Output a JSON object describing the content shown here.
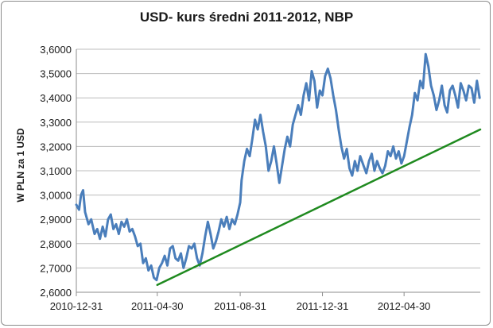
{
  "chart_data": {
    "type": "line",
    "title": "USD- kurs średni 2011-2012, NBP",
    "ylabel": "W PLN za 1 USD",
    "xlabel": "",
    "ylim": [
      2.6,
      3.6
    ],
    "yticks": [
      "3,6000",
      "3,5000",
      "3,4000",
      "3,3000",
      "3,2000",
      "3,1000",
      "3,0000",
      "2,9000",
      "2,8000",
      "2,7000",
      "2,6000"
    ],
    "xticks": [
      "2010-12-31",
      "2011-04-30",
      "2011-08-31",
      "2011-12-31",
      "2012-04-30"
    ],
    "xlim": [
      "2010-12-31",
      "2012-08-21"
    ],
    "grid": true,
    "legend": "none",
    "series": [
      {
        "color": "#4a7ebb",
        "points": [
          [
            "2010-12-31",
            2.96
          ],
          [
            "2011-01-04",
            2.94
          ],
          [
            "2011-01-07",
            3.0
          ],
          [
            "2011-01-10",
            3.02
          ],
          [
            "2011-01-13",
            2.93
          ],
          [
            "2011-01-18",
            2.88
          ],
          [
            "2011-01-22",
            2.9
          ],
          [
            "2011-01-27",
            2.84
          ],
          [
            "2011-01-31",
            2.86
          ],
          [
            "2011-02-04",
            2.82
          ],
          [
            "2011-02-08",
            2.87
          ],
          [
            "2011-02-12",
            2.83
          ],
          [
            "2011-02-16",
            2.9
          ],
          [
            "2011-02-20",
            2.92
          ],
          [
            "2011-02-24",
            2.86
          ],
          [
            "2011-02-28",
            2.88
          ],
          [
            "2011-03-04",
            2.84
          ],
          [
            "2011-03-08",
            2.89
          ],
          [
            "2011-03-12",
            2.87
          ],
          [
            "2011-03-16",
            2.9
          ],
          [
            "2011-03-20",
            2.85
          ],
          [
            "2011-03-24",
            2.86
          ],
          [
            "2011-03-28",
            2.83
          ],
          [
            "2011-04-01",
            2.79
          ],
          [
            "2011-04-05",
            2.8
          ],
          [
            "2011-04-09",
            2.72
          ],
          [
            "2011-04-13",
            2.74
          ],
          [
            "2011-04-17",
            2.69
          ],
          [
            "2011-04-21",
            2.71
          ],
          [
            "2011-04-25",
            2.66
          ],
          [
            "2011-04-29",
            2.65
          ],
          [
            "2011-05-03",
            2.7
          ],
          [
            "2011-05-07",
            2.72
          ],
          [
            "2011-05-11",
            2.75
          ],
          [
            "2011-05-15",
            2.71
          ],
          [
            "2011-05-19",
            2.78
          ],
          [
            "2011-05-23",
            2.79
          ],
          [
            "2011-05-27",
            2.74
          ],
          [
            "2011-05-31",
            2.73
          ],
          [
            "2011-06-04",
            2.76
          ],
          [
            "2011-06-08",
            2.7
          ],
          [
            "2011-06-12",
            2.74
          ],
          [
            "2011-06-16",
            2.79
          ],
          [
            "2011-06-20",
            2.78
          ],
          [
            "2011-06-24",
            2.8
          ],
          [
            "2011-06-28",
            2.74
          ],
          [
            "2011-07-02",
            2.71
          ],
          [
            "2011-07-06",
            2.76
          ],
          [
            "2011-07-10",
            2.83
          ],
          [
            "2011-07-14",
            2.89
          ],
          [
            "2011-07-18",
            2.84
          ],
          [
            "2011-07-22",
            2.78
          ],
          [
            "2011-07-26",
            2.81
          ],
          [
            "2011-07-30",
            2.85
          ],
          [
            "2011-08-03",
            2.9
          ],
          [
            "2011-08-07",
            2.87
          ],
          [
            "2011-08-11",
            2.91
          ],
          [
            "2011-08-15",
            2.86
          ],
          [
            "2011-08-19",
            2.9
          ],
          [
            "2011-08-23",
            2.88
          ],
          [
            "2011-08-27",
            2.92
          ],
          [
            "2011-08-31",
            2.97
          ],
          [
            "2011-09-02",
            3.06
          ],
          [
            "2011-09-06",
            3.14
          ],
          [
            "2011-09-10",
            3.19
          ],
          [
            "2011-09-14",
            3.16
          ],
          [
            "2011-09-18",
            3.23
          ],
          [
            "2011-09-22",
            3.31
          ],
          [
            "2011-09-26",
            3.27
          ],
          [
            "2011-09-30",
            3.33
          ],
          [
            "2011-10-04",
            3.26
          ],
          [
            "2011-10-08",
            3.2
          ],
          [
            "2011-10-12",
            3.1
          ],
          [
            "2011-10-16",
            3.14
          ],
          [
            "2011-10-20",
            3.2
          ],
          [
            "2011-10-24",
            3.13
          ],
          [
            "2011-10-28",
            3.05
          ],
          [
            "2011-11-01",
            3.12
          ],
          [
            "2011-11-05",
            3.19
          ],
          [
            "2011-11-09",
            3.24
          ],
          [
            "2011-11-13",
            3.2
          ],
          [
            "2011-11-17",
            3.29
          ],
          [
            "2011-11-21",
            3.33
          ],
          [
            "2011-11-25",
            3.37
          ],
          [
            "2011-11-29",
            3.33
          ],
          [
            "2011-12-03",
            3.41
          ],
          [
            "2011-12-07",
            3.46
          ],
          [
            "2011-12-11",
            3.39
          ],
          [
            "2011-12-15",
            3.51
          ],
          [
            "2011-12-19",
            3.47
          ],
          [
            "2011-12-23",
            3.36
          ],
          [
            "2011-12-27",
            3.43
          ],
          [
            "2011-12-31",
            3.41
          ],
          [
            "2012-01-04",
            3.49
          ],
          [
            "2012-01-08",
            3.52
          ],
          [
            "2012-01-12",
            3.48
          ],
          [
            "2012-01-16",
            3.41
          ],
          [
            "2012-01-20",
            3.35
          ],
          [
            "2012-01-24",
            3.27
          ],
          [
            "2012-01-28",
            3.2
          ],
          [
            "2012-02-01",
            3.15
          ],
          [
            "2012-02-05",
            3.19
          ],
          [
            "2012-02-09",
            3.11
          ],
          [
            "2012-02-13",
            3.08
          ],
          [
            "2012-02-17",
            3.14
          ],
          [
            "2012-02-21",
            3.1
          ],
          [
            "2012-02-25",
            3.16
          ],
          [
            "2012-03-01",
            3.12
          ],
          [
            "2012-03-05",
            3.09
          ],
          [
            "2012-03-09",
            3.14
          ],
          [
            "2012-03-13",
            3.17
          ],
          [
            "2012-03-17",
            3.1
          ],
          [
            "2012-03-21",
            3.14
          ],
          [
            "2012-03-25",
            3.11
          ],
          [
            "2012-03-29",
            3.09
          ],
          [
            "2012-04-02",
            3.12
          ],
          [
            "2012-04-06",
            3.18
          ],
          [
            "2012-04-10",
            3.16
          ],
          [
            "2012-04-14",
            3.2
          ],
          [
            "2012-04-18",
            3.15
          ],
          [
            "2012-04-22",
            3.18
          ],
          [
            "2012-04-26",
            3.13
          ],
          [
            "2012-04-30",
            3.16
          ],
          [
            "2012-05-04",
            3.22
          ],
          [
            "2012-05-08",
            3.28
          ],
          [
            "2012-05-12",
            3.33
          ],
          [
            "2012-05-16",
            3.42
          ],
          [
            "2012-05-20",
            3.39
          ],
          [
            "2012-05-24",
            3.47
          ],
          [
            "2012-05-28",
            3.44
          ],
          [
            "2012-06-01",
            3.58
          ],
          [
            "2012-06-05",
            3.53
          ],
          [
            "2012-06-09",
            3.45
          ],
          [
            "2012-06-13",
            3.41
          ],
          [
            "2012-06-17",
            3.35
          ],
          [
            "2012-06-21",
            3.39
          ],
          [
            "2012-06-25",
            3.45
          ],
          [
            "2012-06-29",
            3.37
          ],
          [
            "2012-07-03",
            3.34
          ],
          [
            "2012-07-07",
            3.43
          ],
          [
            "2012-07-11",
            3.45
          ],
          [
            "2012-07-15",
            3.41
          ],
          [
            "2012-07-19",
            3.36
          ],
          [
            "2012-07-23",
            3.46
          ],
          [
            "2012-07-27",
            3.43
          ],
          [
            "2012-07-31",
            3.39
          ],
          [
            "2012-08-04",
            3.45
          ],
          [
            "2012-08-08",
            3.44
          ],
          [
            "2012-08-12",
            3.38
          ],
          [
            "2012-08-16",
            3.47
          ],
          [
            "2012-08-20",
            3.4
          ]
        ]
      },
      {
        "color": "#1f8a1f",
        "points": [
          [
            "2011-04-30",
            2.63
          ],
          [
            "2012-08-21",
            3.27
          ]
        ]
      }
    ]
  }
}
